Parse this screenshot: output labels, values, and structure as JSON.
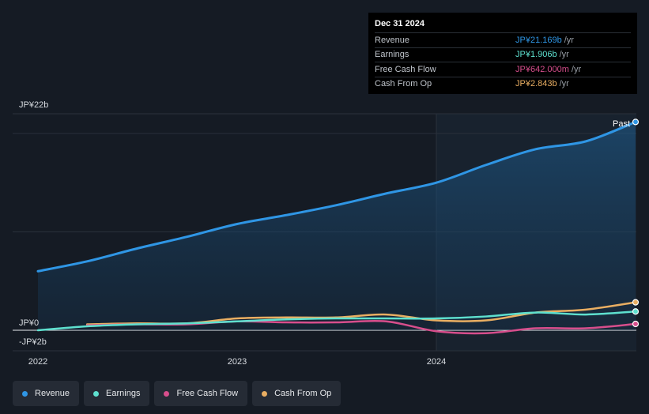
{
  "tooltip": {
    "date": "Dec 31 2024",
    "rows": [
      {
        "label": "Revenue",
        "value": "JP¥21.169b",
        "unit": "/yr",
        "color": "#2f96e5"
      },
      {
        "label": "Earnings",
        "value": "JP¥1.906b",
        "unit": "/yr",
        "color": "#5ee0cf"
      },
      {
        "label": "Free Cash Flow",
        "value": "JP¥642.000m",
        "unit": "/yr",
        "color": "#d74e8c"
      },
      {
        "label": "Cash From Op",
        "value": "JP¥2.843b",
        "unit": "/yr",
        "color": "#e9ae62"
      }
    ]
  },
  "legend": [
    {
      "label": "Revenue",
      "color": "#2f96e5"
    },
    {
      "label": "Earnings",
      "color": "#5ee0cf"
    },
    {
      "label": "Free Cash Flow",
      "color": "#d74e8c"
    },
    {
      "label": "Cash From Op",
      "color": "#e9ae62"
    }
  ],
  "chart_data": {
    "type": "line",
    "y_axis_labels": [
      "JP¥22b",
      "JP¥0",
      "-JP¥2b"
    ],
    "x_axis_labels": [
      "2022",
      "2023",
      "2024"
    ],
    "past_label": "Past",
    "ylim": [
      -2,
      22
    ],
    "grid": true,
    "series": [
      {
        "name": "Revenue",
        "color": "#2f96e5",
        "area": true,
        "points": [
          [
            "2022-01-01",
            6.0
          ],
          [
            "2022-04-01",
            7.0
          ],
          [
            "2022-07-01",
            8.3
          ],
          [
            "2022-10-01",
            9.5
          ],
          [
            "2023-01-01",
            10.8
          ],
          [
            "2023-04-01",
            11.7
          ],
          [
            "2023-07-01",
            12.7
          ],
          [
            "2023-10-01",
            13.9
          ],
          [
            "2024-01-01",
            15.0
          ],
          [
            "2024-04-01",
            16.8
          ],
          [
            "2024-07-01",
            18.4
          ],
          [
            "2024-10-01",
            19.2
          ],
          [
            "2024-12-31",
            21.169
          ]
        ]
      },
      {
        "name": "Earnings",
        "color": "#5ee0cf",
        "points": [
          [
            "2022-01-01",
            0.0
          ],
          [
            "2022-04-01",
            0.4
          ],
          [
            "2022-07-01",
            0.6
          ],
          [
            "2022-10-01",
            0.7
          ],
          [
            "2023-01-01",
            0.9
          ],
          [
            "2023-04-01",
            1.1
          ],
          [
            "2023-07-01",
            1.2
          ],
          [
            "2023-10-01",
            1.2
          ],
          [
            "2024-01-01",
            1.2
          ],
          [
            "2024-04-01",
            1.4
          ],
          [
            "2024-07-01",
            1.8
          ],
          [
            "2024-10-01",
            1.6
          ],
          [
            "2024-12-31",
            1.906
          ]
        ]
      },
      {
        "name": "Free Cash Flow",
        "color": "#d74e8c",
        "points": [
          [
            "2022-04-01",
            0.5
          ],
          [
            "2022-07-01",
            0.6
          ],
          [
            "2022-10-01",
            0.6
          ],
          [
            "2023-01-01",
            0.9
          ],
          [
            "2023-04-01",
            0.8
          ],
          [
            "2023-07-01",
            0.8
          ],
          [
            "2023-10-01",
            0.9
          ],
          [
            "2024-01-01",
            -0.1
          ],
          [
            "2024-04-01",
            -0.3
          ],
          [
            "2024-07-01",
            0.2
          ],
          [
            "2024-10-01",
            0.2
          ],
          [
            "2024-12-31",
            0.642
          ]
        ]
      },
      {
        "name": "Cash From Op",
        "color": "#e9ae62",
        "points": [
          [
            "2022-04-01",
            0.6
          ],
          [
            "2022-07-01",
            0.7
          ],
          [
            "2022-10-01",
            0.7
          ],
          [
            "2023-01-01",
            1.2
          ],
          [
            "2023-04-01",
            1.3
          ],
          [
            "2023-07-01",
            1.3
          ],
          [
            "2023-10-01",
            1.6
          ],
          [
            "2024-01-01",
            1.0
          ],
          [
            "2024-04-01",
            1.0
          ],
          [
            "2024-07-01",
            1.8
          ],
          [
            "2024-10-01",
            2.1
          ],
          [
            "2024-12-31",
            2.843
          ]
        ]
      }
    ]
  }
}
